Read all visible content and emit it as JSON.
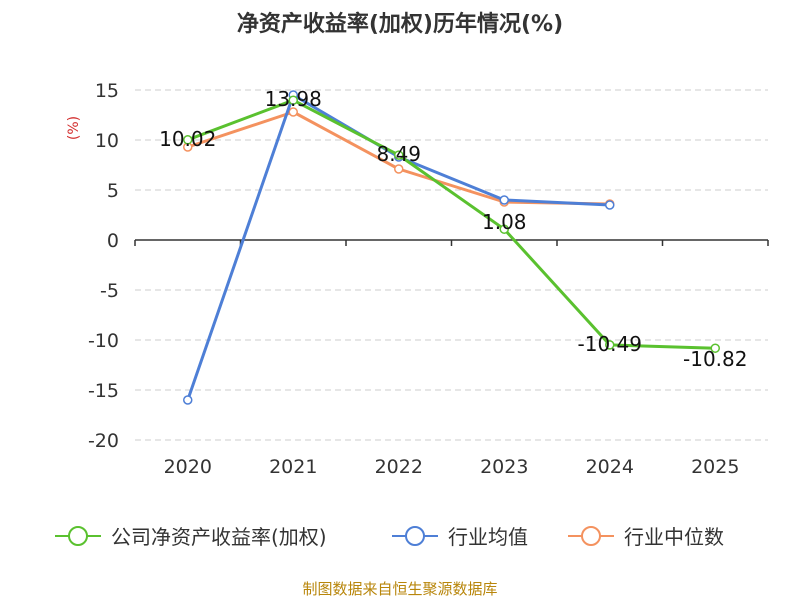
{
  "chart_data": {
    "type": "line",
    "title": "净资产收益率(加权)历年情况(%)",
    "ylabel": "(%)",
    "xlabel": "",
    "categories": [
      "2020",
      "2021",
      "2022",
      "2023",
      "2024",
      "2025"
    ],
    "ylim": [
      -20,
      15
    ],
    "yticks": [
      "15",
      "10",
      "5",
      "0",
      "-5",
      "-10",
      "-15",
      "-20"
    ],
    "grid": true,
    "legend_position": "bottom",
    "series": [
      {
        "name": "公司净资产收益率(加权)",
        "color": "#5ac12f",
        "values": [
          10.02,
          13.98,
          8.49,
          1.08,
          -10.49,
          -10.82
        ],
        "labels": [
          "10.02",
          "13.98",
          "8.49",
          "1.08",
          "-10.49",
          "-10.82"
        ]
      },
      {
        "name": "行业均值",
        "color": "#4e7fd6",
        "values": [
          -16.0,
          14.5,
          8.3,
          4.0,
          3.5,
          null
        ]
      },
      {
        "name": "行业中位数",
        "color": "#f4925f",
        "values": [
          9.3,
          12.8,
          7.1,
          3.8,
          3.6,
          null
        ]
      }
    ]
  },
  "source_text": "制图数据来自恒生聚源数据库"
}
